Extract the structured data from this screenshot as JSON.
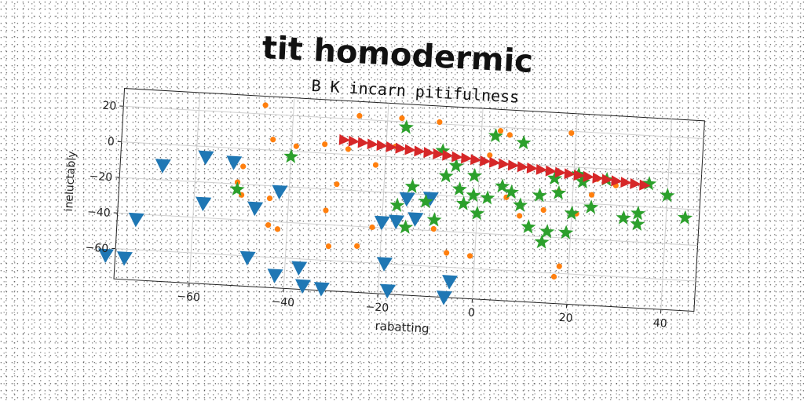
{
  "header": {
    "title": "tit homodermic"
  },
  "chart_data": {
    "type": "scatter",
    "title": "B K incarn pitifulness",
    "xlabel": "rabatting",
    "ylabel": "ineluctably",
    "xlim": [
      -76,
      47
    ],
    "ylim": [
      -77,
      30
    ],
    "xticks": [
      -60,
      -40,
      -20,
      0,
      20,
      40
    ],
    "yticks": [
      20,
      0,
      -20,
      -40,
      -60
    ],
    "xtick_labels": [
      "−60",
      "−40",
      "−20",
      "0",
      "20",
      "40"
    ],
    "ytick_labels": [
      "20",
      "0",
      "−20",
      "−40",
      "−60"
    ],
    "grid": true,
    "series": [
      {
        "marker": "triangle-down",
        "color": "#1f77b4",
        "points": [
          [
            -67,
            -12
          ],
          [
            -58,
            -6
          ],
          [
            -52,
            -8
          ],
          [
            -72,
            -43
          ],
          [
            -58,
            -32
          ],
          [
            -47,
            -33
          ],
          [
            -42,
            -23
          ],
          [
            -78,
            -64
          ],
          [
            -74,
            -65
          ],
          [
            -48,
            -61
          ],
          [
            -42,
            -70
          ],
          [
            -37,
            -65
          ],
          [
            -36,
            -75
          ],
          [
            -32,
            -76
          ],
          [
            -20,
            -37
          ],
          [
            -17,
            -36
          ],
          [
            -13,
            -34
          ],
          [
            -10,
            -22
          ],
          [
            -15,
            -23
          ],
          [
            -19,
            -60
          ],
          [
            -18,
            -75
          ],
          [
            -5,
            -68
          ],
          [
            -6,
            -77
          ]
        ]
      },
      {
        "marker": "circle",
        "color": "#ff7f0e",
        "points": [
          [
            -46,
            25
          ],
          [
            -26,
            22
          ],
          [
            -17,
            22
          ],
          [
            -9,
            21
          ],
          [
            4,
            18
          ],
          [
            -44,
            6
          ],
          [
            -39,
            3
          ],
          [
            -33,
            5
          ],
          [
            -28,
            3
          ],
          [
            -18,
            6
          ],
          [
            -22,
            -5
          ],
          [
            -30,
            -17
          ],
          [
            -44,
            -27
          ],
          [
            -44,
            -42
          ],
          [
            -42,
            -44
          ],
          [
            -50,
            -10
          ],
          [
            -51,
            -19
          ],
          [
            -50,
            -26
          ],
          [
            -32,
            -32
          ],
          [
            -31,
            -52
          ],
          [
            -25,
            -51
          ],
          [
            -22,
            -40
          ],
          [
            -9,
            -39
          ],
          [
            -6,
            -52
          ],
          [
            -1,
            -53
          ],
          [
            6,
            -19
          ],
          [
            9,
            -29
          ],
          [
            14,
            -25
          ],
          [
            17,
            -14
          ],
          [
            18,
            -56
          ],
          [
            17,
            -62
          ],
          [
            21,
            -26
          ],
          [
            25,
            -6
          ],
          [
            29,
            -9
          ],
          [
            19,
            19
          ],
          [
            24,
            -15
          ],
          [
            2,
            4
          ],
          [
            6,
            16
          ]
        ]
      },
      {
        "marker": "star",
        "color": "#2ca02c",
        "points": [
          [
            -16,
            17
          ],
          [
            -40,
            -3
          ],
          [
            -51,
            -23
          ],
          [
            -14,
            -16
          ],
          [
            -17,
            -27
          ],
          [
            -11,
            -24
          ],
          [
            -7,
            -9
          ],
          [
            -1,
            -8
          ],
          [
            -4,
            -16
          ],
          [
            -1,
            -19
          ],
          [
            -3,
            -24
          ],
          [
            -15,
            -39
          ],
          [
            -9,
            -34
          ],
          [
            3,
            15
          ],
          [
            5,
            -13
          ],
          [
            7,
            -16
          ],
          [
            9,
            -23
          ],
          [
            11,
            -35
          ],
          [
            13,
            -17
          ],
          [
            17,
            -15
          ],
          [
            20,
            -26
          ],
          [
            15,
            -37
          ],
          [
            21,
            -4
          ],
          [
            24,
            -22
          ],
          [
            31,
            -27
          ],
          [
            34,
            -30
          ],
          [
            34,
            -24
          ],
          [
            40,
            -13
          ],
          [
            36,
            -7
          ],
          [
            9,
            12
          ],
          [
            16,
            -7
          ],
          [
            2,
            -20
          ],
          [
            -5,
            -3
          ],
          [
            22,
            -8
          ],
          [
            -8,
            5
          ],
          [
            0,
            -29
          ],
          [
            27,
            -6
          ],
          [
            44,
            -25
          ],
          [
            19,
            -37
          ],
          [
            14,
            -43
          ]
        ]
      },
      {
        "marker": "triangle-right",
        "color": "#d62728",
        "points": [
          [
            -29,
            8.0
          ],
          [
            -27,
            7.5
          ],
          [
            -25,
            7.0
          ],
          [
            -23,
            6.5
          ],
          [
            -21,
            6.0
          ],
          [
            -19,
            5.5
          ],
          [
            -17,
            5.0
          ],
          [
            -15,
            4.5
          ],
          [
            -13,
            4.0
          ],
          [
            -11,
            3.5
          ],
          [
            -9,
            3.0
          ],
          [
            -7,
            2.5
          ],
          [
            -5,
            2.0
          ],
          [
            -3,
            1.5
          ],
          [
            -1,
            1.0
          ],
          [
            1,
            0.5
          ],
          [
            3,
            0.0
          ],
          [
            5,
            -0.5
          ],
          [
            7,
            -1.0
          ],
          [
            9,
            -1.5
          ],
          [
            11,
            -2.0
          ],
          [
            13,
            -2.5
          ],
          [
            15,
            -3.0
          ],
          [
            17,
            -3.5
          ],
          [
            19,
            -4.0
          ],
          [
            21,
            -4.5
          ],
          [
            23,
            -5.0
          ],
          [
            25,
            -5.5
          ],
          [
            27,
            -6.0
          ],
          [
            29,
            -6.5
          ],
          [
            31,
            -7.0
          ],
          [
            33,
            -7.5
          ],
          [
            35,
            -8.0
          ]
        ]
      }
    ]
  }
}
